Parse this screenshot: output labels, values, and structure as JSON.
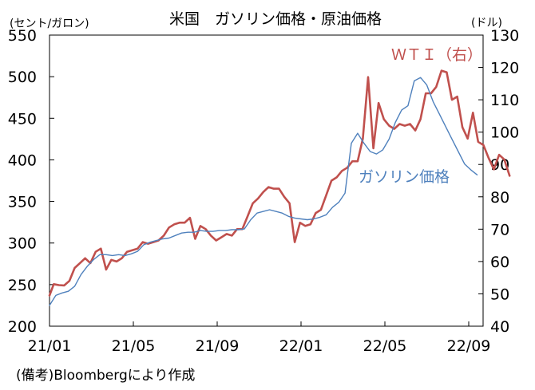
{
  "chart_data": {
    "type": "line",
    "title": "米国　ガソリン価格・原油価格",
    "y_left_label": "(セント/ガロン)",
    "y_right_label": "(ドル)",
    "x_ticks": [
      "21/01",
      "21/05",
      "21/09",
      "22/01",
      "22/05",
      "22/09"
    ],
    "y_left_ticks": [
      200,
      250,
      300,
      350,
      400,
      450,
      500,
      550
    ],
    "y_right_ticks": [
      40,
      50,
      60,
      70,
      80,
      90,
      100,
      110,
      120,
      130
    ],
    "y_left_lim": [
      200,
      550
    ],
    "y_right_lim": [
      40,
      130
    ],
    "x_domain_months": [
      0,
      20.5
    ],
    "grid": false,
    "series": [
      {
        "name": "ガソリン価格",
        "axis": "left",
        "color": "#4f81bd",
        "label_text": "ガソリン価格",
        "points": [
          [
            0.0,
            225
          ],
          [
            0.3,
            237
          ],
          [
            0.6,
            240
          ],
          [
            0.9,
            242
          ],
          [
            1.2,
            248
          ],
          [
            1.5,
            262
          ],
          [
            1.8,
            272
          ],
          [
            2.1,
            280
          ],
          [
            2.4,
            286
          ],
          [
            2.7,
            286
          ],
          [
            3.0,
            285
          ],
          [
            3.3,
            286
          ],
          [
            3.6,
            285
          ],
          [
            3.9,
            287
          ],
          [
            4.2,
            290
          ],
          [
            4.5,
            298
          ],
          [
            4.8,
            301
          ],
          [
            5.1,
            303
          ],
          [
            5.4,
            305
          ],
          [
            5.7,
            306
          ],
          [
            6.0,
            309
          ],
          [
            6.3,
            312
          ],
          [
            6.6,
            313
          ],
          [
            6.9,
            313
          ],
          [
            7.2,
            315
          ],
          [
            7.5,
            314
          ],
          [
            7.8,
            314
          ],
          [
            8.1,
            315
          ],
          [
            8.4,
            315
          ],
          [
            8.7,
            316
          ],
          [
            9.0,
            316
          ],
          [
            9.3,
            317
          ],
          [
            9.6,
            328
          ],
          [
            9.9,
            336
          ],
          [
            10.2,
            338
          ],
          [
            10.5,
            340
          ],
          [
            10.8,
            338
          ],
          [
            11.1,
            336
          ],
          [
            11.4,
            332
          ],
          [
            11.7,
            330
          ],
          [
            12.0,
            329
          ],
          [
            12.3,
            328
          ],
          [
            12.6,
            329
          ],
          [
            12.9,
            331
          ],
          [
            13.2,
            334
          ],
          [
            13.5,
            343
          ],
          [
            13.8,
            349
          ],
          [
            14.1,
            360
          ],
          [
            14.4,
            420
          ],
          [
            14.7,
            432
          ],
          [
            15.0,
            420
          ],
          [
            15.3,
            410
          ],
          [
            15.6,
            407
          ],
          [
            15.9,
            412
          ],
          [
            16.2,
            425
          ],
          [
            16.5,
            445
          ],
          [
            16.8,
            460
          ],
          [
            17.1,
            465
          ],
          [
            17.4,
            495
          ],
          [
            17.7,
            499
          ],
          [
            18.0,
            490
          ],
          [
            18.3,
            470
          ],
          [
            18.6,
            455
          ],
          [
            18.9,
            440
          ],
          [
            19.2,
            425
          ],
          [
            19.5,
            410
          ],
          [
            19.8,
            395
          ],
          [
            20.1,
            388
          ],
          [
            20.4,
            382
          ]
        ]
      },
      {
        "name": "WTI（右）",
        "axis": "right",
        "color": "#c0504d",
        "label_text": "ＷＴＩ（右）",
        "points": [
          [
            0.0,
            49.5
          ],
          [
            0.2,
            53
          ],
          [
            0.45,
            52.7
          ],
          [
            0.7,
            52.6
          ],
          [
            0.95,
            54
          ],
          [
            1.2,
            58
          ],
          [
            1.45,
            59.5
          ],
          [
            1.7,
            61
          ],
          [
            1.95,
            59.5
          ],
          [
            2.2,
            63
          ],
          [
            2.45,
            64
          ],
          [
            2.7,
            57.5
          ],
          [
            2.95,
            60.5
          ],
          [
            3.2,
            60
          ],
          [
            3.45,
            61
          ],
          [
            3.7,
            63
          ],
          [
            3.95,
            63.5
          ],
          [
            4.2,
            64
          ],
          [
            4.45,
            66
          ],
          [
            4.7,
            65.5
          ],
          [
            4.95,
            66
          ],
          [
            5.2,
            66.5
          ],
          [
            5.45,
            68
          ],
          [
            5.7,
            70.5
          ],
          [
            5.95,
            71.5
          ],
          [
            6.2,
            72
          ],
          [
            6.45,
            72
          ],
          [
            6.7,
            73.5
          ],
          [
            6.95,
            67
          ],
          [
            7.2,
            71
          ],
          [
            7.45,
            70
          ],
          [
            7.7,
            68
          ],
          [
            7.95,
            66.5
          ],
          [
            8.2,
            67.5
          ],
          [
            8.45,
            68.5
          ],
          [
            8.7,
            68
          ],
          [
            8.95,
            70
          ],
          [
            9.2,
            70
          ],
          [
            9.45,
            74
          ],
          [
            9.7,
            78
          ],
          [
            9.95,
            79.5
          ],
          [
            10.2,
            81.5
          ],
          [
            10.45,
            83
          ],
          [
            10.7,
            82.5
          ],
          [
            10.95,
            82.5
          ],
          [
            11.2,
            80
          ],
          [
            11.45,
            78
          ],
          [
            11.7,
            66
          ],
          [
            11.95,
            72
          ],
          [
            12.2,
            71
          ],
          [
            12.45,
            71.5
          ],
          [
            12.7,
            75
          ],
          [
            12.95,
            76
          ],
          [
            13.2,
            80.5
          ],
          [
            13.45,
            85
          ],
          [
            13.7,
            86
          ],
          [
            13.95,
            88
          ],
          [
            14.2,
            89
          ],
          [
            14.45,
            91
          ],
          [
            14.7,
            91
          ],
          [
            14.95,
            98
          ],
          [
            15.2,
            117
          ],
          [
            15.45,
            95
          ],
          [
            15.7,
            109
          ],
          [
            15.95,
            104
          ],
          [
            16.2,
            102
          ],
          [
            16.45,
            101
          ],
          [
            16.7,
            102.5
          ],
          [
            16.95,
            102
          ],
          [
            17.2,
            102.5
          ],
          [
            17.45,
            100.5
          ],
          [
            17.7,
            104
          ],
          [
            17.95,
            112
          ],
          [
            18.2,
            112
          ],
          [
            18.45,
            114
          ],
          [
            18.7,
            119
          ],
          [
            18.95,
            118.5
          ],
          [
            19.2,
            110
          ],
          [
            19.45,
            111
          ],
          [
            19.7,
            101.5
          ],
          [
            19.95,
            98
          ],
          [
            20.2,
            106
          ],
          [
            20.45,
            97
          ],
          [
            20.7,
            96
          ],
          [
            20.95,
            92
          ],
          [
            21.2,
            88.5
          ],
          [
            21.45,
            93
          ],
          [
            21.7,
            91.5
          ],
          [
            21.95,
            86.5
          ]
        ]
      }
    ]
  },
  "footnote": "(備考)Bloombergにより作成"
}
